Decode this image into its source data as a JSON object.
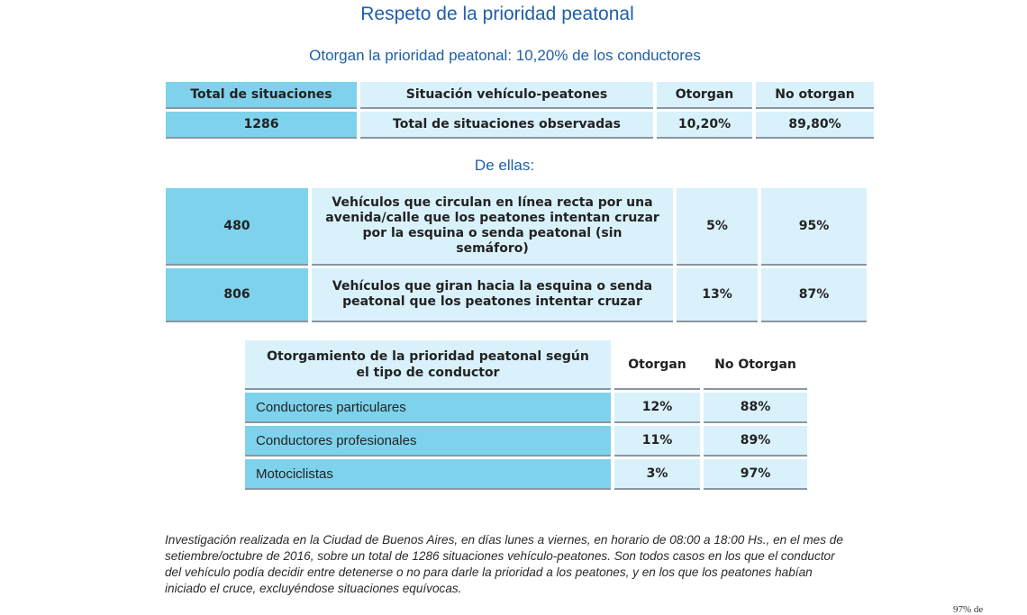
{
  "title": "Respeto de la prioridad peatonal",
  "subtitle": "Otorgan la prioridad peatonal: 10,20% de los conductores",
  "summary_table": {
    "headers": [
      "Total de situaciones",
      "Situación vehículo-peatones",
      "Otorgan",
      "No otorgan"
    ],
    "row": [
      "1286",
      "Total de situaciones observadas",
      "10,20%",
      "89,80%"
    ]
  },
  "breakdown_heading": "De ellas:",
  "breakdown_table": {
    "rows": [
      [
        "480",
        "Vehículos que circulan en línea recta por una avenida/calle que los peatones intentan cruzar por la esquina o senda peatonal (sin semáforo)",
        "5%",
        "95%"
      ],
      [
        "806",
        "Vehículos que giran hacia la esquina o senda peatonal que los peatones intentar cruzar",
        "13%",
        "87%"
      ]
    ]
  },
  "driver_table": {
    "headers": [
      "Otorgamiento de la prioridad peatonal según el tipo de conductor",
      "Otorgan",
      "No Otorgan"
    ],
    "rows": [
      [
        "Conductores particulares",
        "12%",
        "88%"
      ],
      [
        "Conductores profesionales",
        "11%",
        "89%"
      ],
      [
        "Motociclistas",
        "3%",
        "97%"
      ]
    ]
  },
  "footnote": "Investigación realizada en la Ciudad de Buenos Aires, en días lunes a viernes, en horario de 08:00 a 18:00 Hs., en el mes de setiembre/octubre de 2016, sobre un total de 1286 situaciones vehículo-peatones. Son todos casos en los que el conductor del vehículo podía decidir entre detenerse o no para darle la prioridad a los peatones, y en los que los peatones habían iniciado el cruce, excluyéndose situaciones equívocas.",
  "corner_text": "97% de"
}
